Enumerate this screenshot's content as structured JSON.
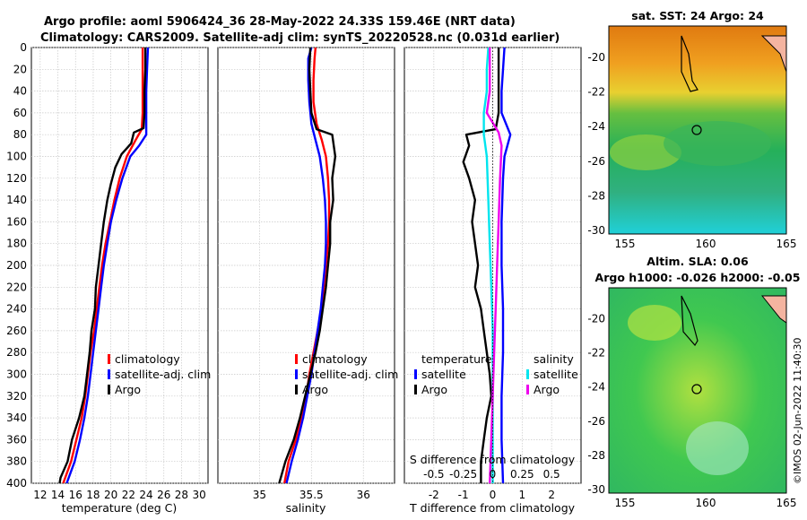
{
  "title_line1": "Argo profile: aoml 5906424_36 28-May-2022 24.33S 159.46E (NRT data)",
  "title_line2": "Climatology: CARS2009. Satellite-adj clim: synTS_20220528.nc (0.031d earlier)",
  "credit": "©IMOS 02-Jun-2022 11:40:30",
  "colors": {
    "climatology": "#ff0000",
    "satellite": "#0000ff",
    "argo": "#000000",
    "sal_sat": "#00e5ee",
    "sal_argo": "#ee00ee"
  },
  "chart_data": [
    {
      "type": "line",
      "id": "temperature",
      "xlabel": "temperature (deg C)",
      "ylabel": "",
      "xlim": [
        11,
        31
      ],
      "ylim": [
        400,
        0
      ],
      "xticks": [
        12,
        14,
        16,
        18,
        20,
        22,
        24,
        26,
        28,
        30
      ],
      "yticks": [
        0,
        20,
        40,
        60,
        80,
        100,
        120,
        140,
        160,
        180,
        200,
        220,
        240,
        260,
        280,
        300,
        320,
        340,
        360,
        380,
        400
      ],
      "grid": true,
      "legend": [
        "climatology",
        "satellite-adj. clim",
        "Argo"
      ],
      "series": [
        {
          "name": "climatology",
          "color": "#ff0000",
          "points": [
            [
              23.6,
              0
            ],
            [
              23.6,
              20
            ],
            [
              23.6,
              40
            ],
            [
              23.6,
              60
            ],
            [
              23.5,
              75
            ],
            [
              22.8,
              85
            ],
            [
              21.8,
              100
            ],
            [
              21.0,
              120
            ],
            [
              20.4,
              140
            ],
            [
              19.9,
              160
            ],
            [
              19.4,
              180
            ],
            [
              19.0,
              200
            ],
            [
              18.7,
              220
            ],
            [
              18.4,
              240
            ],
            [
              18.1,
              260
            ],
            [
              17.7,
              280
            ],
            [
              17.4,
              300
            ],
            [
              17.1,
              320
            ],
            [
              16.7,
              340
            ],
            [
              16.1,
              360
            ],
            [
              15.5,
              380
            ],
            [
              14.6,
              400
            ]
          ]
        },
        {
          "name": "satellite-adj. clim",
          "color": "#0000ff",
          "points": [
            [
              24.2,
              0
            ],
            [
              24.1,
              20
            ],
            [
              24.0,
              40
            ],
            [
              24.0,
              60
            ],
            [
              24.0,
              80
            ],
            [
              23.2,
              90
            ],
            [
              22.2,
              100
            ],
            [
              21.3,
              120
            ],
            [
              20.6,
              140
            ],
            [
              20.0,
              160
            ],
            [
              19.6,
              180
            ],
            [
              19.2,
              200
            ],
            [
              18.9,
              220
            ],
            [
              18.6,
              240
            ],
            [
              18.3,
              260
            ],
            [
              18.0,
              280
            ],
            [
              17.7,
              300
            ],
            [
              17.4,
              320
            ],
            [
              17.0,
              340
            ],
            [
              16.5,
              360
            ],
            [
              15.9,
              380
            ],
            [
              15.0,
              400
            ]
          ]
        },
        {
          "name": "Argo",
          "color": "#000000",
          "points": [
            [
              23.9,
              0
            ],
            [
              23.9,
              20
            ],
            [
              23.8,
              40
            ],
            [
              23.8,
              60
            ],
            [
              23.7,
              74
            ],
            [
              22.6,
              78
            ],
            [
              22.3,
              88
            ],
            [
              21.2,
              98
            ],
            [
              20.5,
              110
            ],
            [
              20.0,
              125
            ],
            [
              19.6,
              140
            ],
            [
              19.2,
              160
            ],
            [
              18.9,
              180
            ],
            [
              18.6,
              200
            ],
            [
              18.3,
              220
            ],
            [
              18.2,
              240
            ],
            [
              17.8,
              260
            ],
            [
              17.6,
              280
            ],
            [
              17.3,
              300
            ],
            [
              17.0,
              320
            ],
            [
              16.4,
              340
            ],
            [
              15.6,
              360
            ],
            [
              15.1,
              380
            ],
            [
              14.3,
              395
            ],
            [
              14.2,
              400
            ]
          ]
        }
      ]
    },
    {
      "type": "line",
      "id": "salinity",
      "xlabel": "salinity",
      "xlim": [
        34.6,
        36.3
      ],
      "ylim": [
        400,
        0
      ],
      "xticks": [
        35,
        35.5,
        36
      ],
      "grid": true,
      "legend": [
        "climatology",
        "satellite-adj. clim",
        "Argo"
      ],
      "series": [
        {
          "name": "climatology",
          "color": "#ff0000",
          "points": [
            [
              35.54,
              0
            ],
            [
              35.53,
              10
            ],
            [
              35.52,
              30
            ],
            [
              35.52,
              50
            ],
            [
              35.55,
              70
            ],
            [
              35.6,
              85
            ],
            [
              35.64,
              100
            ],
            [
              35.66,
              120
            ],
            [
              35.67,
              140
            ],
            [
              35.67,
              160
            ],
            [
              35.66,
              180
            ],
            [
              35.64,
              200
            ],
            [
              35.62,
              220
            ],
            [
              35.6,
              240
            ],
            [
              35.56,
              260
            ],
            [
              35.52,
              280
            ],
            [
              35.48,
              300
            ],
            [
              35.45,
              320
            ],
            [
              35.4,
              340
            ],
            [
              35.35,
              360
            ],
            [
              35.28,
              380
            ],
            [
              35.24,
              400
            ]
          ]
        },
        {
          "name": "satellite-adj. clim",
          "color": "#0000ff",
          "points": [
            [
              35.5,
              0
            ],
            [
              35.47,
              10
            ],
            [
              35.47,
              30
            ],
            [
              35.48,
              50
            ],
            [
              35.5,
              70
            ],
            [
              35.54,
              85
            ],
            [
              35.58,
              100
            ],
            [
              35.61,
              120
            ],
            [
              35.63,
              140
            ],
            [
              35.64,
              160
            ],
            [
              35.64,
              180
            ],
            [
              35.63,
              200
            ],
            [
              35.61,
              220
            ],
            [
              35.59,
              240
            ],
            [
              35.56,
              260
            ],
            [
              35.53,
              280
            ],
            [
              35.5,
              300
            ],
            [
              35.46,
              320
            ],
            [
              35.42,
              340
            ],
            [
              35.37,
              360
            ],
            [
              35.31,
              380
            ],
            [
              35.26,
              400
            ]
          ]
        },
        {
          "name": "Argo",
          "color": "#000000",
          "points": [
            [
              35.49,
              0
            ],
            [
              35.48,
              20
            ],
            [
              35.49,
              40
            ],
            [
              35.5,
              60
            ],
            [
              35.55,
              75
            ],
            [
              35.7,
              80
            ],
            [
              35.73,
              100
            ],
            [
              35.7,
              120
            ],
            [
              35.71,
              140
            ],
            [
              35.68,
              160
            ],
            [
              35.68,
              180
            ],
            [
              35.66,
              200
            ],
            [
              35.64,
              220
            ],
            [
              35.61,
              240
            ],
            [
              35.58,
              260
            ],
            [
              35.54,
              280
            ],
            [
              35.49,
              300
            ],
            [
              35.44,
              320
            ],
            [
              35.39,
              340
            ],
            [
              35.33,
              360
            ],
            [
              35.25,
              380
            ],
            [
              35.19,
              400
            ]
          ]
        }
      ]
    },
    {
      "type": "line",
      "id": "difference",
      "xlabel": "T difference from climatology",
      "xlabel_top": "S difference from climatology",
      "xlim": [
        -3,
        3
      ],
      "ylim": [
        400,
        0
      ],
      "xticks": [
        -2,
        -1,
        0,
        1,
        2
      ],
      "xticklabels_s": [
        "-0.5",
        "-0.25",
        "0",
        "0.25",
        "0.5"
      ],
      "xticks_s_pos": [
        -2,
        -1,
        0,
        1,
        2
      ],
      "grid": true,
      "legend_left_title": "temperature",
      "legend_right_title": "salinity",
      "legend_left": [
        "satellite",
        "Argo"
      ],
      "legend_right": [
        "satellite",
        "Argo"
      ],
      "series": [
        {
          "name": "T satellite",
          "color": "#0000ff",
          "points": [
            [
              0.4,
              0
            ],
            [
              0.35,
              20
            ],
            [
              0.3,
              40
            ],
            [
              0.3,
              60
            ],
            [
              0.6,
              80
            ],
            [
              0.4,
              100
            ],
            [
              0.35,
              120
            ],
            [
              0.3,
              160
            ],
            [
              0.3,
              200
            ],
            [
              0.35,
              240
            ],
            [
              0.35,
              280
            ],
            [
              0.3,
              320
            ],
            [
              0.3,
              360
            ],
            [
              0.35,
              400
            ]
          ]
        },
        {
          "name": "T Argo",
          "color": "#000000",
          "points": [
            [
              0.2,
              0
            ],
            [
              0.2,
              60
            ],
            [
              0.1,
              75
            ],
            [
              -0.9,
              80
            ],
            [
              -0.8,
              90
            ],
            [
              -1.0,
              105
            ],
            [
              -0.8,
              120
            ],
            [
              -0.6,
              140
            ],
            [
              -0.7,
              160
            ],
            [
              -0.6,
              180
            ],
            [
              -0.5,
              200
            ],
            [
              -0.6,
              220
            ],
            [
              -0.4,
              240
            ],
            [
              -0.3,
              260
            ],
            [
              -0.2,
              280
            ],
            [
              -0.1,
              300
            ],
            [
              -0.05,
              320
            ],
            [
              -0.2,
              340
            ],
            [
              -0.3,
              360
            ],
            [
              -0.4,
              380
            ],
            [
              -0.4,
              400
            ]
          ]
        },
        {
          "name": "S satellite",
          "color": "#00e5ee",
          "points": [
            [
              -0.15,
              0
            ],
            [
              -0.2,
              20
            ],
            [
              -0.2,
              40
            ],
            [
              -0.3,
              60
            ],
            [
              -0.3,
              80
            ],
            [
              -0.2,
              100
            ],
            [
              -0.15,
              140
            ],
            [
              -0.1,
              180
            ],
            [
              -0.05,
              220
            ],
            [
              0.0,
              260
            ],
            [
              0.0,
              300
            ],
            [
              0.0,
              340
            ],
            [
              0.0,
              400
            ]
          ]
        },
        {
          "name": "S Argo",
          "color": "#ee00ee",
          "points": [
            [
              -0.1,
              0
            ],
            [
              -0.1,
              40
            ],
            [
              -0.2,
              60
            ],
            [
              0.2,
              78
            ],
            [
              0.3,
              90
            ],
            [
              0.25,
              120
            ],
            [
              0.2,
              160
            ],
            [
              0.15,
              200
            ],
            [
              0.1,
              240
            ],
            [
              0.05,
              280
            ],
            [
              0.0,
              320
            ],
            [
              -0.05,
              360
            ],
            [
              -0.1,
              400
            ]
          ]
        }
      ]
    },
    {
      "type": "heatmap",
      "id": "sst_map",
      "title": "sat. SST: 24 Argo: 24",
      "xlim": [
        154,
        165
      ],
      "ylim": [
        -30.2,
        -18.2
      ],
      "xticks": [
        155,
        160,
        165
      ],
      "yticks": [
        -20,
        -22,
        -24,
        -26,
        -28,
        -30
      ],
      "argo_position": [
        159.46,
        -24.33
      ]
    },
    {
      "type": "heatmap",
      "id": "sla_map",
      "title_line1": "Altim. SLA: 0.06",
      "title_line2": "Argo h1000: -0.026 h2000: -0.05",
      "xlim": [
        154,
        165
      ],
      "ylim": [
        -30.2,
        -18.2
      ],
      "xticks": [
        155,
        160,
        165
      ],
      "yticks": [
        -20,
        -22,
        -24,
        -26,
        -28,
        -30
      ],
      "argo_position": [
        159.46,
        -24.33
      ]
    }
  ]
}
